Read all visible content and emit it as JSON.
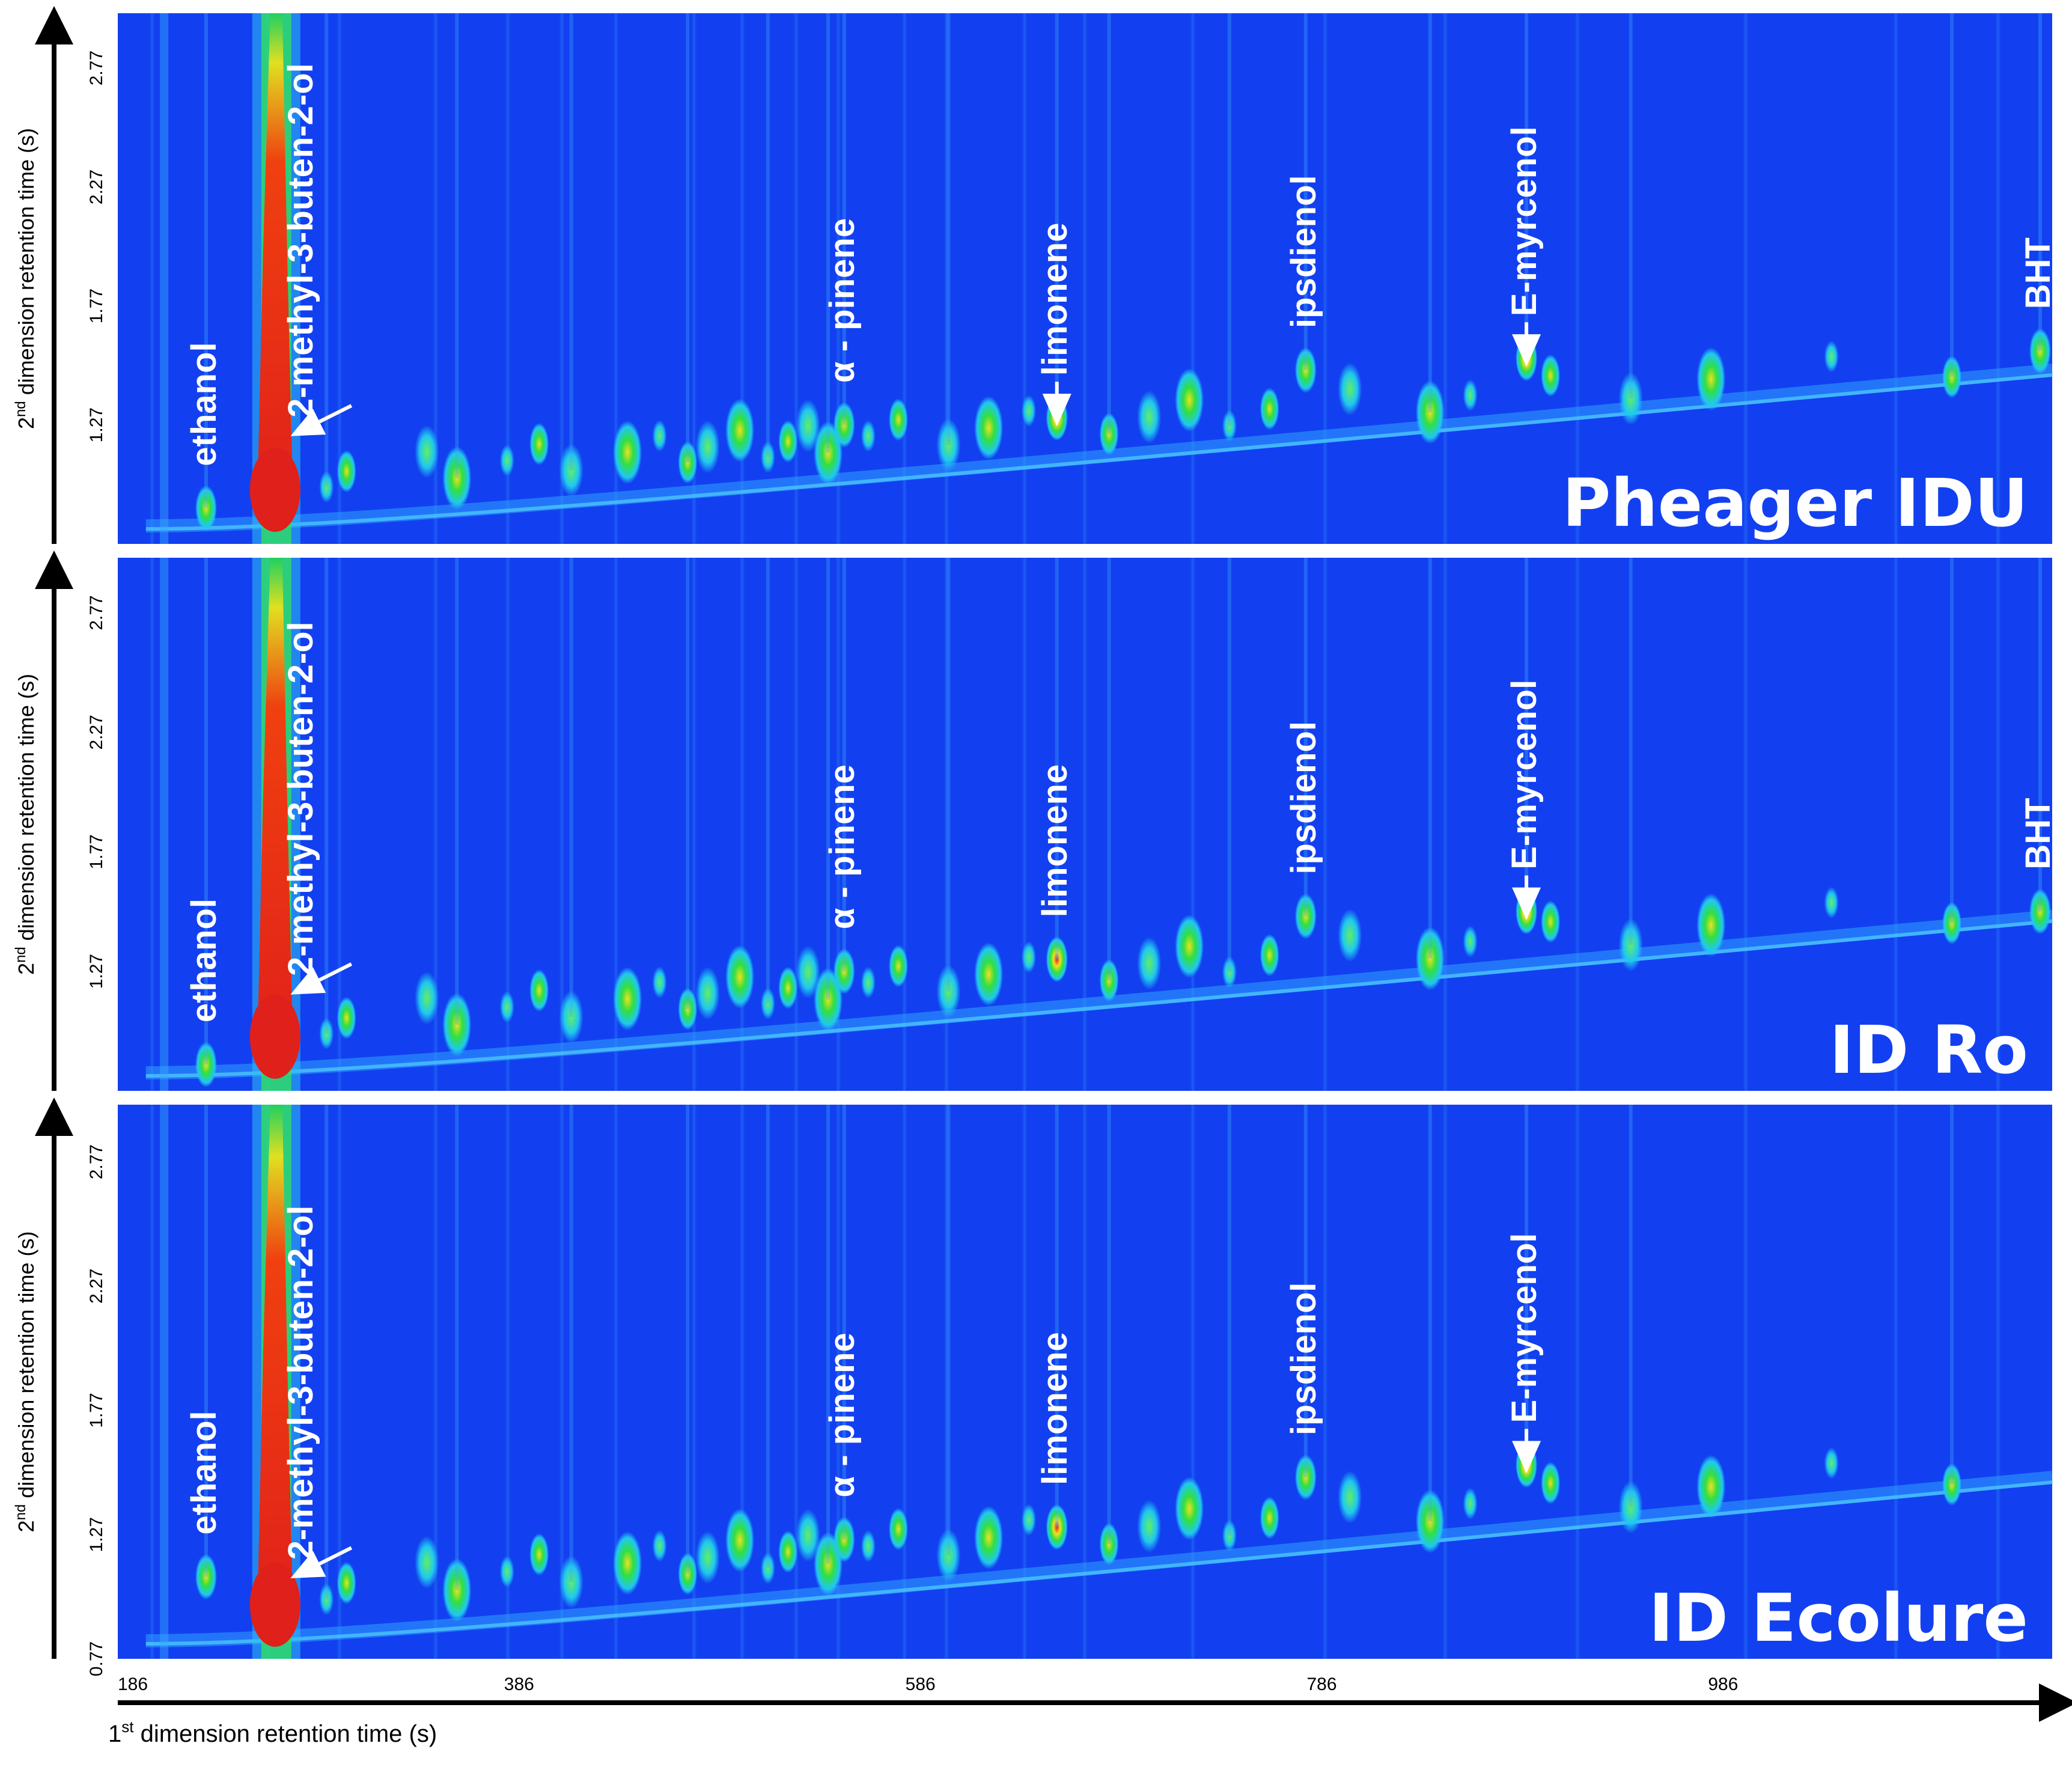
{
  "chart_data": {
    "type": "heatmap",
    "description_free": true,
    "x_axis": {
      "label": "1",
      "label_sup": "st",
      "label_rest": " dimension retention time (s)",
      "ticks": [
        "186",
        "386",
        "586",
        "786",
        "986"
      ],
      "tick_values": [
        186,
        386,
        586,
        786,
        986
      ],
      "range": [
        186,
        1150
      ]
    },
    "y_axis": {
      "label": "2",
      "label_sup": "nd",
      "label_rest": " dimension retention time (s)",
      "range": [
        0.77,
        3.0
      ]
    },
    "panels": [
      {
        "name": "Pheager IDU",
        "y_ticks": [
          "2.77",
          "2.27",
          "1.77",
          "1.27"
        ],
        "y_tick_values": [
          2.77,
          2.27,
          1.77,
          1.27
        ],
        "compounds": [
          {
            "label": "ethanol",
            "x": 230,
            "y": 0.92
          },
          {
            "label": "2-methyl-3-buten-2-ol",
            "x": 265,
            "y": 1.25,
            "arrow": true
          },
          {
            "label": "α - pinene",
            "x": 548,
            "y": 1.27
          },
          {
            "label": "limonene",
            "x": 654,
            "y": 1.3,
            "arrow": true
          },
          {
            "label": "ipsdienol",
            "x": 778,
            "y": 1.5
          },
          {
            "label": "E-myrcenol",
            "x": 888,
            "y": 1.55,
            "arrow": true
          },
          {
            "label": "BHT",
            "x": 1144,
            "y": 1.58
          }
        ]
      },
      {
        "name": "ID Ro",
        "y_ticks": [
          "2.77",
          "2.27",
          "1.77",
          "1.27"
        ],
        "y_tick_values": [
          2.77,
          2.27,
          1.77,
          1.27
        ],
        "compounds": [
          {
            "label": "ethanol",
            "x": 230,
            "y": 0.88
          },
          {
            "label": "2-methyl-3-buten-2-ol",
            "x": 265,
            "y": 1.2,
            "arrow": true
          },
          {
            "label": "α - pinene",
            "x": 548,
            "y": 1.27
          },
          {
            "label": "limonene",
            "x": 654,
            "y": 1.32
          },
          {
            "label": "ipsdienol",
            "x": 778,
            "y": 1.5
          },
          {
            "label": "E-myrcenol",
            "x": 888,
            "y": 1.52,
            "arrow": true
          },
          {
            "label": "BHT",
            "x": 1144,
            "y": 1.52
          }
        ]
      },
      {
        "name": "ID Ecolure",
        "y_ticks": [
          "2.77",
          "2.27",
          "1.77",
          "1.27",
          "0.77"
        ],
        "y_tick_values": [
          2.77,
          2.27,
          1.77,
          1.27,
          0.77
        ],
        "compounds": [
          {
            "label": "ethanol",
            "x": 230,
            "y": 1.1
          },
          {
            "label": "2-methyl-3-buten-2-ol",
            "x": 265,
            "y": 1.12,
            "arrow": true
          },
          {
            "label": "α - pinene",
            "x": 548,
            "y": 1.25
          },
          {
            "label": "limonene",
            "x": 654,
            "y": 1.3
          },
          {
            "label": "ipsdienol",
            "x": 778,
            "y": 1.5
          },
          {
            "label": "E-myrcenol",
            "x": 888,
            "y": 1.55,
            "arrow": true
          }
        ]
      }
    ]
  }
}
